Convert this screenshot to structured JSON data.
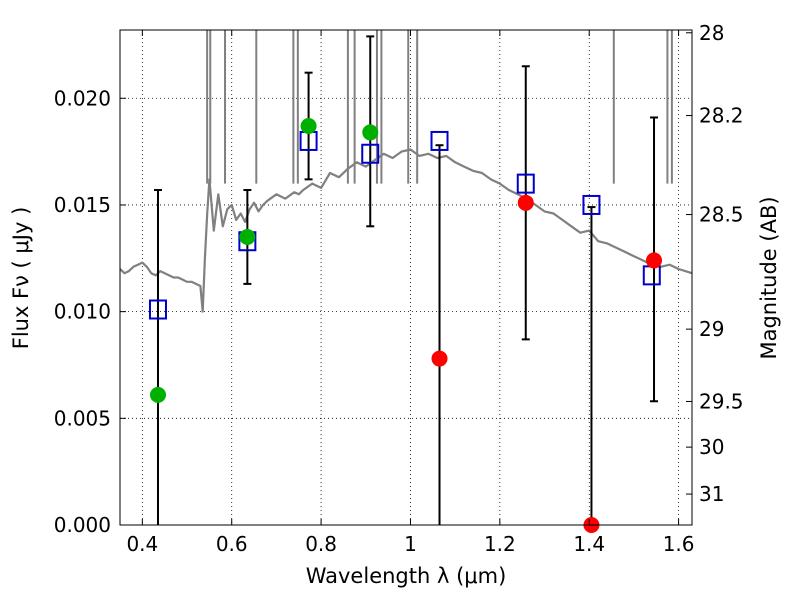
{
  "chart_data": {
    "type": "scatter",
    "title": "",
    "xlabel": "Wavelength  λ (μm)",
    "ylabel": "Flux  Fν  ( μJy )",
    "ylabel_right": "Magnitude (AB)",
    "xlim": [
      0.35,
      1.63
    ],
    "ylim": [
      0.0,
      0.0232
    ],
    "grid": true,
    "legend": "none",
    "x_ticks": [
      0.4,
      0.6,
      0.8,
      1.0,
      1.2,
      1.4,
      1.6
    ],
    "x_tick_labels": [
      "0.4",
      "0.6",
      "0.8",
      "1",
      "1.2",
      "1.4",
      "1.6"
    ],
    "y_ticks": [
      0.0,
      0.005,
      0.01,
      0.015,
      0.02
    ],
    "y_tick_labels": [
      "0.000",
      "0.005",
      "0.010",
      "0.015",
      "0.020"
    ],
    "right_ticks": [
      {
        "label": "28",
        "flux": 0.02307
      },
      {
        "label": "28.2",
        "flux": 0.01919
      },
      {
        "label": "28.5",
        "flux": 0.01455
      },
      {
        "label": "29",
        "flux": 0.00918
      },
      {
        "label": "29.5",
        "flux": 0.00579
      },
      {
        "label": "30",
        "flux": 0.00365
      },
      {
        "label": "31",
        "flux": 0.00145
      }
    ],
    "colors": {
      "spectrum": "#808080",
      "model_box": "#0000cc",
      "detection": "#00b000",
      "nondetection": "#ff0000",
      "errorbar": "#000000"
    },
    "series": [
      {
        "kind": "line",
        "x": [
          0.35,
          0.36,
          0.37,
          0.38,
          0.39,
          0.4,
          0.41,
          0.42,
          0.43,
          0.44,
          0.45,
          0.46,
          0.47,
          0.48,
          0.49,
          0.5,
          0.51,
          0.52,
          0.53,
          0.535,
          0.54,
          0.545,
          0.55,
          0.56,
          0.57,
          0.58,
          0.59,
          0.6,
          0.61,
          0.62,
          0.63,
          0.64,
          0.65,
          0.66,
          0.67,
          0.68,
          0.7,
          0.72,
          0.74,
          0.75,
          0.76,
          0.78,
          0.8,
          0.82,
          0.84,
          0.86,
          0.88,
          0.9,
          0.92,
          0.94,
          0.96,
          0.98,
          1.0,
          1.02,
          1.04,
          1.06,
          1.08,
          1.1,
          1.12,
          1.14,
          1.16,
          1.18,
          1.2,
          1.22,
          1.24,
          1.26,
          1.28,
          1.3,
          1.32,
          1.34,
          1.36,
          1.38,
          1.4,
          1.42,
          1.44,
          1.46,
          1.48,
          1.5,
          1.52,
          1.54,
          1.56,
          1.58,
          1.6,
          1.63
        ],
        "y": [
          0.012,
          0.0118,
          0.0119,
          0.0121,
          0.0122,
          0.0123,
          0.0121,
          0.0118,
          0.0117,
          0.0119,
          0.0118,
          0.0117,
          0.0116,
          0.0116,
          0.0115,
          0.0114,
          0.0114,
          0.0113,
          0.0112,
          0.01,
          0.0125,
          0.0145,
          0.0162,
          0.0138,
          0.0155,
          0.014,
          0.0148,
          0.015,
          0.0143,
          0.0146,
          0.0142,
          0.0148,
          0.0151,
          0.0147,
          0.015,
          0.0152,
          0.0155,
          0.0153,
          0.0156,
          0.0155,
          0.0157,
          0.016,
          0.0158,
          0.0165,
          0.0163,
          0.0167,
          0.017,
          0.0168,
          0.0171,
          0.0174,
          0.0172,
          0.0175,
          0.0176,
          0.0173,
          0.0174,
          0.0172,
          0.0173,
          0.017,
          0.0168,
          0.0166,
          0.0165,
          0.0162,
          0.016,
          0.0157,
          0.0155,
          0.0153,
          0.015,
          0.0147,
          0.0146,
          0.0143,
          0.014,
          0.0137,
          0.0138,
          0.0133,
          0.0132,
          0.013,
          0.0128,
          0.0126,
          0.0124,
          0.0122,
          0.0121,
          0.0122,
          0.012,
          0.0118
        ]
      },
      {
        "kind": "model_boxes",
        "x": [
          0.435,
          0.635,
          0.772,
          0.91,
          1.065,
          1.258,
          1.405,
          1.54
        ],
        "y": [
          0.0101,
          0.0133,
          0.018,
          0.0174,
          0.018,
          0.016,
          0.015,
          0.0117
        ]
      },
      {
        "kind": "detections",
        "x": [
          0.435,
          0.635,
          0.772,
          0.91
        ],
        "y": [
          0.0061,
          0.0135,
          0.0187,
          0.0184
        ]
      },
      {
        "kind": "nondetections",
        "x": [
          1.065,
          1.258,
          1.405,
          1.545
        ],
        "y": [
          0.0078,
          0.0151,
          0.0,
          0.0124
        ]
      },
      {
        "kind": "errorbars",
        "x": [
          0.435,
          0.635,
          0.772,
          0.91,
          1.065,
          1.258,
          1.405,
          1.545
        ],
        "low": [
          0.0,
          0.0113,
          0.0162,
          0.014,
          0.0,
          0.0087,
          0.0,
          0.0058
        ],
        "high": [
          0.0157,
          0.0157,
          0.0212,
          0.0229,
          0.0178,
          0.0215,
          0.0149,
          0.0191
        ]
      }
    ]
  }
}
